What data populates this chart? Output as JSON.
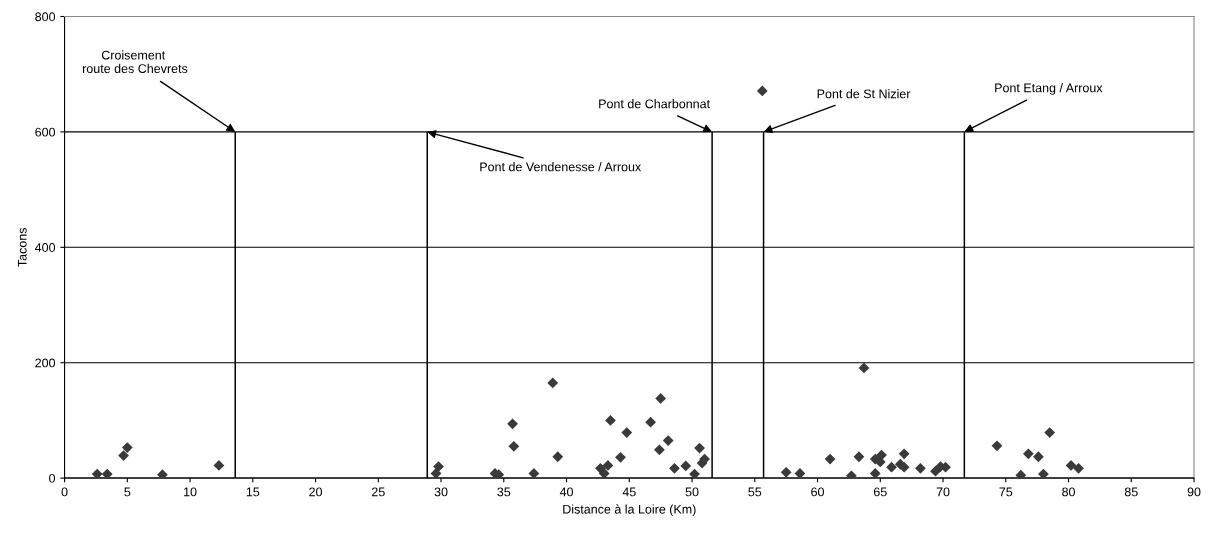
{
  "chart_data": {
    "type": "scatter",
    "xlabel": "Distance à la Loire (Km)",
    "ylabel": "Tacons",
    "xlim": [
      0,
      90
    ],
    "xticks": [
      0,
      5,
      10,
      15,
      20,
      25,
      30,
      35,
      40,
      45,
      50,
      55,
      60,
      65,
      70,
      75,
      80,
      85,
      90
    ],
    "ylim": [
      0,
      800
    ],
    "yticks": [
      0,
      200,
      400,
      600,
      800
    ],
    "grid": "y",
    "marker": "diamond",
    "series": [
      {
        "color": "#3a3a3a",
        "x": [
          2.6,
          3.4,
          4.7,
          5.0,
          7.8,
          12.3,
          29.6,
          29.8,
          34.3,
          34.6,
          35.7,
          35.8,
          37.4,
          38.9,
          39.3,
          42.7,
          43.0,
          43.3,
          43.5,
          44.3,
          44.8,
          46.7,
          47.4,
          47.5,
          48.1,
          48.6,
          49.5,
          50.2,
          50.6,
          50.8,
          51.0,
          55.6,
          57.5,
          58.6,
          61.0,
          62.7,
          63.3,
          63.7,
          64.6,
          64.6,
          65.0,
          65.1,
          65.9,
          66.6,
          66.9,
          66.9,
          68.2,
          69.4,
          69.8,
          70.2,
          74.3,
          76.2,
          76.8,
          77.6,
          78.0,
          78.5,
          80.2,
          80.8
        ],
        "values": [
          7,
          7,
          39,
          53,
          6,
          22,
          8,
          20,
          8,
          6,
          94,
          55,
          8,
          165,
          37,
          17,
          8,
          22,
          100,
          36,
          79,
          97,
          49,
          138,
          65,
          17,
          21,
          7,
          52,
          26,
          33,
          671,
          10,
          8,
          33,
          4,
          37,
          191,
          8,
          33,
          28,
          40,
          19,
          24,
          42,
          19,
          17,
          12,
          20,
          19,
          56,
          5,
          42,
          37,
          7,
          79,
          22,
          17
        ]
      },
      {
        "type": "bar",
        "color": "#000000",
        "x": [
          13.6,
          28.9,
          51.6,
          55.7,
          71.7
        ],
        "values": [
          600,
          600,
          600,
          600,
          600
        ]
      }
    ],
    "annotations": [
      {
        "text": "Croisement\n route des Chevrets",
        "x": 13.6,
        "y": 600
      },
      {
        "text": "Pont de Vendenesse / Arroux",
        "x": 28.9,
        "y": 600
      },
      {
        "text": "Pont de Charbonnat",
        "x": 51.6,
        "y": 600
      },
      {
        "text": "Pont de St Nizier",
        "x": 55.7,
        "y": 600
      },
      {
        "text": "Pont Etang / Arroux",
        "x": 71.7,
        "y": 600
      }
    ]
  }
}
